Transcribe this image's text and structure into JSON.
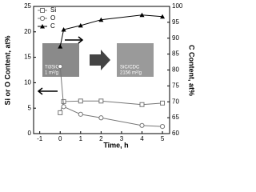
{
  "chart_data": {
    "type": "line",
    "x_label": "Time, h",
    "y_label": "Si or O Content, at%",
    "y2_label": "C Content, at%",
    "x": [
      0,
      0.17,
      1,
      2,
      4,
      5
    ],
    "series": [
      {
        "name": "Si",
        "color": "#777777",
        "marker": "square",
        "values": [
          4.1,
          6.3,
          6.4,
          6.4,
          5.7,
          6.0
        ]
      },
      {
        "name": "O",
        "color": "#777777",
        "marker": "circle",
        "values": [
          13.2,
          5.3,
          3.8,
          3.1,
          1.6,
          1.4
        ]
      },
      {
        "name": "C",
        "color": "#000000",
        "marker": "triangle",
        "axis": "y2",
        "values": [
          87.4,
          92.7,
          94.0,
          95.8,
          97.3,
          96.8
        ]
      }
    ],
    "xlim": [
      -1.3,
      5.35
    ],
    "xticks": [
      -1,
      0,
      1,
      2,
      3,
      4,
      5
    ],
    "ylim": [
      0,
      25
    ],
    "yticks": [
      0,
      5,
      10,
      15,
      20,
      25
    ],
    "y2lim": [
      60,
      100
    ],
    "y2ticks": [
      60,
      65,
      70,
      75,
      80,
      85,
      90,
      95,
      100
    ],
    "legend": "upper left",
    "annotations": [
      "Ti3SiC2",
      "1 m²/g",
      "SiC/CDC",
      "2156 m²/g"
    ]
  }
}
